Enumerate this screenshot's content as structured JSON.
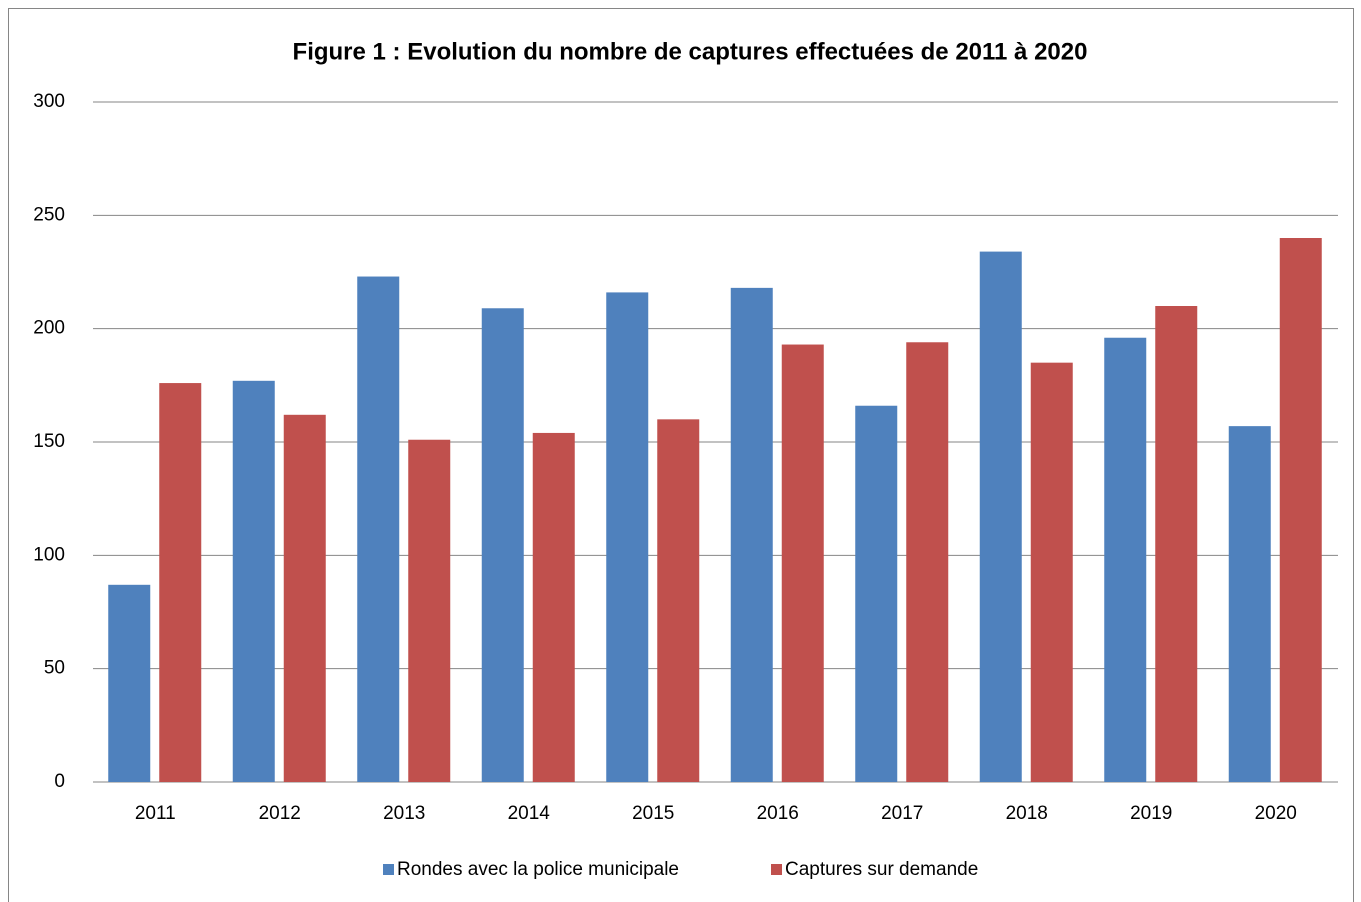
{
  "chart_data": {
    "type": "bar",
    "title": "Figure 1 : Evolution du nombre de captures effectuées de 2011 à 2020",
    "categories": [
      "2011",
      "2012",
      "2013",
      "2014",
      "2015",
      "2016",
      "2017",
      "2018",
      "2019",
      "2020"
    ],
    "series": [
      {
        "name": "Rondes avec la police municipale",
        "color": "#4f81bd",
        "values": [
          87,
          177,
          223,
          209,
          216,
          218,
          166,
          234,
          196,
          157
        ]
      },
      {
        "name": "Captures sur demande",
        "color": "#c0504d",
        "values": [
          176,
          162,
          151,
          154,
          160,
          193,
          194,
          185,
          210,
          240
        ]
      }
    ],
    "ylim": [
      0,
      300
    ],
    "yticks": [
      0,
      50,
      100,
      150,
      200,
      250,
      300
    ],
    "grid": true,
    "legend": "bottom"
  }
}
